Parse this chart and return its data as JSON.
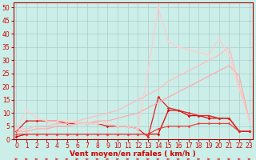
{
  "background_color": "#cceee8",
  "grid_color": "#aacccc",
  "xlabel": "Vent moyen/en rafales ( km/h )",
  "ylim": [
    0,
    52
  ],
  "yticks": [
    0,
    5,
    10,
    15,
    20,
    25,
    30,
    35,
    40,
    45,
    50
  ],
  "x_labels": [
    "0",
    "1",
    "2",
    "3",
    "4",
    "5",
    "6",
    "7",
    "8",
    "9",
    "10",
    "11",
    "12",
    "13",
    "14",
    "15",
    "16",
    "17",
    "18",
    "19",
    "20",
    "21",
    "22",
    "23"
  ],
  "series": [
    {
      "color": "#dd0000",
      "linewidth": 0.9,
      "marker": "D",
      "markersize": 1.8,
      "data": [
        1,
        2,
        2,
        2,
        2,
        2,
        2,
        2,
        2,
        2,
        2,
        2,
        2,
        2,
        2,
        11,
        11,
        9,
        9,
        8,
        8,
        8,
        3,
        3
      ]
    },
    {
      "color": "#ee4444",
      "linewidth": 0.9,
      "marker": "D",
      "markersize": 1.8,
      "data": [
        2,
        2,
        2,
        2,
        2,
        2,
        2,
        2,
        2,
        2,
        2,
        2,
        2,
        2,
        4,
        5,
        5,
        5,
        6,
        6,
        6,
        6,
        3,
        3
      ]
    },
    {
      "color": "#dd2222",
      "linewidth": 0.9,
      "marker": "D",
      "markersize": 1.8,
      "data": [
        3,
        7,
        7,
        7,
        7,
        6,
        6,
        6,
        6,
        5,
        5,
        5,
        4,
        1,
        16,
        12,
        11,
        10,
        9,
        9,
        8,
        8,
        3,
        3
      ]
    },
    {
      "color": "#ffaaaa",
      "linewidth": 0.9,
      "marker": null,
      "data": [
        3,
        3,
        4,
        4,
        5,
        5,
        6,
        6,
        7,
        7,
        8,
        9,
        10,
        12,
        14,
        16,
        18,
        20,
        22,
        24,
        26,
        28,
        24,
        7
      ]
    },
    {
      "color": "#ffbbbb",
      "linewidth": 0.9,
      "marker": null,
      "data": [
        4,
        4,
        5,
        5,
        6,
        6,
        7,
        8,
        9,
        10,
        11,
        13,
        15,
        17,
        19,
        22,
        24,
        26,
        28,
        30,
        32,
        35,
        20,
        7
      ]
    },
    {
      "color": "#ffcccc",
      "linewidth": 0.9,
      "marker": "D",
      "markersize": 1.8,
      "data": [
        4,
        11,
        8,
        7,
        7,
        7,
        6,
        6,
        6,
        6,
        5,
        5,
        4,
        26,
        50,
        37,
        35,
        34,
        33,
        32,
        38,
        32,
        19,
        7
      ]
    }
  ],
  "tick_fontsize": 5.5,
  "label_fontsize": 6.5
}
